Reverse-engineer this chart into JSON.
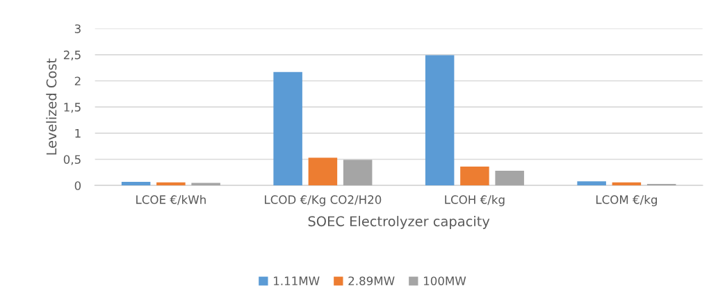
{
  "chart_data": {
    "type": "bar",
    "xlabel": "SOEC Electrolyzer capacity",
    "ylabel": "Levelized Cost",
    "categories": [
      "LCOE €/kWh",
      "LCOD €/Kg CO2/H20",
      "LCOH €/kg",
      "LCOM €/kg"
    ],
    "series": [
      {
        "name": "1.11MW",
        "color": "#5b9bd5",
        "values": [
          0.07,
          2.17,
          2.49,
          0.08
        ]
      },
      {
        "name": "2.89MW",
        "color": "#ed7d31",
        "values": [
          0.06,
          0.53,
          0.36,
          0.06
        ]
      },
      {
        "name": "100MW",
        "color": "#a5a5a5",
        "values": [
          0.05,
          0.49,
          0.28,
          0.03
        ]
      }
    ],
    "ylim": [
      0,
      3
    ],
    "yticks": [
      0,
      {
        "value": 0.5,
        "label": "0,5"
      },
      1,
      {
        "value": 1.5,
        "label": "1,5"
      },
      2,
      {
        "value": 2.5,
        "label": "2,5"
      },
      3
    ],
    "grid": "y",
    "legend": "bottom"
  }
}
